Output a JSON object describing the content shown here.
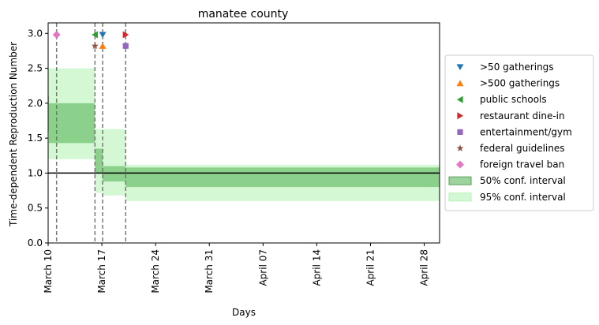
{
  "chart_data": {
    "type": "line",
    "title": "manatee county",
    "xlabel": "Days",
    "ylabel": "Time-dependent Reproduction Number",
    "xlim": [
      0,
      51
    ],
    "ylim": [
      0,
      3.15
    ],
    "x_ticks": [
      {
        "day": 0,
        "label": "March 10"
      },
      {
        "day": 7,
        "label": "March 17"
      },
      {
        "day": 14,
        "label": "March 24"
      },
      {
        "day": 21,
        "label": "March 31"
      },
      {
        "day": 28,
        "label": "April 07"
      },
      {
        "day": 35,
        "label": "April 14"
      },
      {
        "day": 42,
        "label": "April 21"
      },
      {
        "day": 49,
        "label": "April 28"
      }
    ],
    "y_ticks": [
      0.0,
      0.5,
      1.0,
      1.5,
      2.0,
      2.5,
      3.0
    ],
    "y_tick_labels": [
      "0.0",
      "0.5",
      "1.0",
      "1.5",
      "2.0",
      "2.5",
      "3.0"
    ],
    "reference_line": {
      "y": 1.0,
      "color": "#000000"
    },
    "intervention_lines": [
      1.1,
      6.1,
      7.1,
      10.1
    ],
    "ci50": [
      {
        "x0": 0,
        "x1": 0.1,
        "low": 1.6,
        "high": 2.1
      },
      {
        "x0": 0.1,
        "x1": 6.1,
        "low": 1.43,
        "high": 2.0
      },
      {
        "x0": 6.1,
        "x1": 7.1,
        "low": 1.0,
        "high": 1.35
      },
      {
        "x0": 7.1,
        "x1": 10.1,
        "low": 0.88,
        "high": 1.1
      },
      {
        "x0": 10.1,
        "x1": 51,
        "low": 0.8,
        "high": 1.08
      }
    ],
    "ci95": [
      {
        "x0": 0,
        "x1": 0.1,
        "low": 1.2,
        "high": 2.5
      },
      {
        "x0": 0.1,
        "x1": 6.1,
        "low": 1.2,
        "high": 2.5
      },
      {
        "x0": 6.1,
        "x1": 7.1,
        "low": 0.72,
        "high": 1.63
      },
      {
        "x0": 7.1,
        "x1": 10.1,
        "low": 0.68,
        "high": 1.63
      },
      {
        "x0": 10.1,
        "x1": 51,
        "low": 0.6,
        "high": 1.12
      }
    ],
    "markers": [
      {
        "name": ">50 gatherings",
        "x": 7.1,
        "y": 2.98,
        "shape": "triangle-down",
        "color": "#1f77b4"
      },
      {
        "name": ">500 gatherings",
        "x": 7.1,
        "y": 2.82,
        "shape": "triangle-up",
        "color": "#ff7f0e"
      },
      {
        "name": "public schools",
        "x": 6.1,
        "y": 2.98,
        "shape": "triangle-left",
        "color": "#2ca02c"
      },
      {
        "name": "restaurant dine-in",
        "x": 10.1,
        "y": 2.98,
        "shape": "triangle-right",
        "color": "#d62728"
      },
      {
        "name": "entertainment/gym",
        "x": 10.1,
        "y": 2.82,
        "shape": "square",
        "color": "#9467bd"
      },
      {
        "name": "federal guidelines",
        "x": 6.1,
        "y": 2.82,
        "shape": "star",
        "color": "#8c564b"
      },
      {
        "name": "foreign travel ban",
        "x": 1.1,
        "y": 2.98,
        "shape": "diamond",
        "color": "#e377c2"
      }
    ],
    "band_colors": {
      "ci50": "#5cb85c",
      "ci95": "#90ee90"
    },
    "legend": {
      "placement": "right",
      "entries": [
        {
          "label": ">50 gatherings",
          "shape": "triangle-down",
          "color": "#1f77b4"
        },
        {
          "label": ">500 gatherings",
          "shape": "triangle-up",
          "color": "#ff7f0e"
        },
        {
          "label": "public schools",
          "shape": "triangle-left",
          "color": "#2ca02c"
        },
        {
          "label": "restaurant dine-in",
          "shape": "triangle-right",
          "color": "#d62728"
        },
        {
          "label": "entertainment/gym",
          "shape": "square",
          "color": "#9467bd"
        },
        {
          "label": "federal guidelines",
          "shape": "star",
          "color": "#8c564b"
        },
        {
          "label": "foreign travel ban",
          "shape": "diamond",
          "color": "#e377c2"
        },
        {
          "label": "50% conf. interval",
          "shape": "patch50",
          "color": "#5cb85c"
        },
        {
          "label": "95% conf. interval",
          "shape": "patch95",
          "color": "#90ee90"
        }
      ]
    }
  }
}
